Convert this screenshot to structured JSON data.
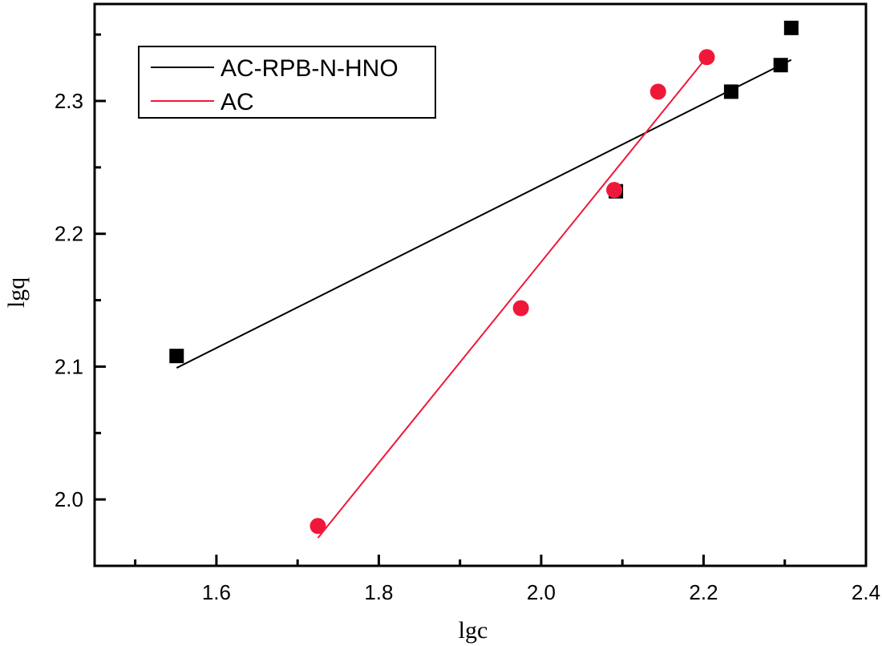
{
  "chart_data": {
    "type": "scatter",
    "title": "",
    "xlabel": "lgc",
    "ylabel": "lgq",
    "xlim": [
      1.45,
      2.4
    ],
    "ylim": [
      1.95,
      2.373
    ],
    "xticks": [
      1.6,
      1.8,
      2.0,
      2.2,
      2.4
    ],
    "xtick_labels": [
      "1.6",
      "1.8",
      "2.0",
      "2.2",
      "2.4"
    ],
    "xminor": [
      1.5,
      1.7,
      1.9,
      2.1,
      2.3
    ],
    "yticks": [
      2.0,
      2.1,
      2.2,
      2.3
    ],
    "ytick_labels": [
      "2.0",
      "2.1",
      "2.2",
      "2.3"
    ],
    "yminor": [
      1.95,
      2.05,
      2.15,
      2.25,
      2.35
    ],
    "grid": false,
    "legend_position": "top-left",
    "series": [
      {
        "name": "AC-RPB-N-HNO",
        "color": "#000000",
        "marker": "square",
        "x": [
          1.551,
          2.092,
          2.234,
          2.295,
          2.308
        ],
        "y": [
          2.108,
          2.232,
          2.307,
          2.327,
          2.355
        ],
        "fit": {
          "x": [
            1.551,
            2.308
          ],
          "y": [
            2.099,
            2.331
          ]
        }
      },
      {
        "name": "AC",
        "color": "#f0183a",
        "marker": "circle",
        "x": [
          1.725,
          1.975,
          2.09,
          2.144,
          2.204
        ],
        "y": [
          1.98,
          2.144,
          2.233,
          2.307,
          2.333
        ],
        "fit": {
          "x": [
            1.725,
            2.204
          ],
          "y": [
            1.971,
            2.333
          ]
        }
      }
    ]
  }
}
